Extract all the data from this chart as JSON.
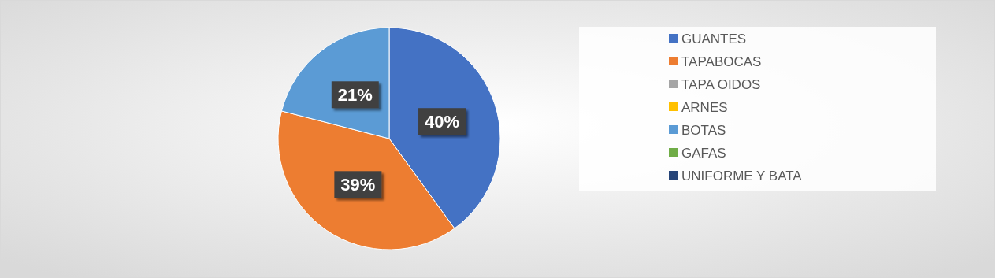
{
  "chart_data": {
    "type": "pie",
    "categories": [
      "GUANTES",
      "TAPABOCAS",
      "TAPA OIDOS",
      "ARNES",
      "BOTAS",
      "GAFAS",
      "UNIFORME Y BATA"
    ],
    "values": [
      40,
      39,
      0,
      0,
      21,
      0,
      0
    ],
    "colors": [
      "#4472c4",
      "#ed7d31",
      "#a5a5a5",
      "#ffc000",
      "#5b9bd5",
      "#70ad47",
      "#264478"
    ],
    "value_labels": [
      "40%",
      "39%",
      null,
      null,
      "21%",
      null,
      null
    ],
    "legend": "right"
  }
}
